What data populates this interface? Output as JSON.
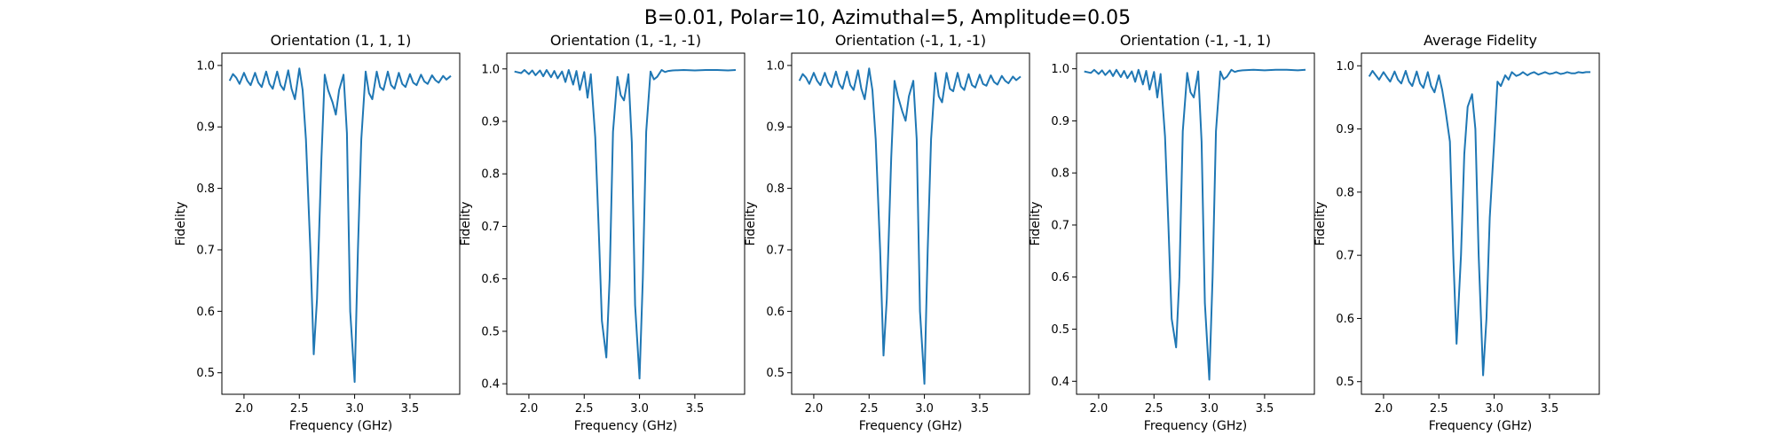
{
  "figure": {
    "suptitle": "B=0.01, Polar=10, Azimuthal=5, Amplitude=0.05"
  },
  "colors": {
    "line": "#1f77b4",
    "frame": "#000000"
  },
  "chart_data": [
    {
      "type": "line",
      "title": "Orientation (1, 1, 1)",
      "xlabel": "Frequency (GHz)",
      "ylabel": "Fidelity",
      "xlim": [
        1.8,
        3.95
      ],
      "ylim": [
        0.465,
        1.02
      ],
      "xticks": [
        "2.0",
        "2.5",
        "3.0",
        "3.5"
      ],
      "yticks": [
        "0.5",
        "0.6",
        "0.7",
        "0.8",
        "0.9",
        "1.0"
      ],
      "grid": false,
      "series": [
        {
          "x": [
            1.87,
            1.9,
            1.93,
            1.96,
            2.0,
            2.03,
            2.06,
            2.1,
            2.13,
            2.16,
            2.2,
            2.23,
            2.26,
            2.3,
            2.33,
            2.36,
            2.4,
            2.43,
            2.46,
            2.5,
            2.53,
            2.56,
            2.6,
            2.63,
            2.66,
            2.7,
            2.73,
            2.76,
            2.8,
            2.83,
            2.86,
            2.9,
            2.93,
            2.96,
            3.0,
            3.03,
            3.06,
            3.1,
            3.13,
            3.16,
            3.2,
            3.23,
            3.26,
            3.3,
            3.33,
            3.36,
            3.4,
            3.43,
            3.46,
            3.5,
            3.53,
            3.56,
            3.6,
            3.63,
            3.66,
            3.7,
            3.73,
            3.76,
            3.8,
            3.83,
            3.87
          ],
          "y": [
            0.975,
            0.986,
            0.98,
            0.97,
            0.988,
            0.975,
            0.968,
            0.988,
            0.972,
            0.965,
            0.99,
            0.97,
            0.962,
            0.99,
            0.968,
            0.96,
            0.992,
            0.962,
            0.945,
            0.995,
            0.96,
            0.88,
            0.7,
            0.53,
            0.62,
            0.85,
            0.985,
            0.96,
            0.94,
            0.92,
            0.96,
            0.985,
            0.89,
            0.6,
            0.485,
            0.7,
            0.88,
            0.99,
            0.955,
            0.945,
            0.99,
            0.965,
            0.96,
            0.99,
            0.968,
            0.962,
            0.988,
            0.97,
            0.965,
            0.986,
            0.972,
            0.968,
            0.985,
            0.974,
            0.97,
            0.984,
            0.976,
            0.972,
            0.983,
            0.977,
            0.983
          ]
        }
      ]
    },
    {
      "type": "line",
      "title": "Orientation (1, -1, -1)",
      "xlabel": "Frequency (GHz)",
      "ylabel": "Fidelity",
      "xlim": [
        1.8,
        3.95
      ],
      "ylim": [
        0.38,
        1.03
      ],
      "xticks": [
        "2.0",
        "2.5",
        "3.0",
        "3.5"
      ],
      "yticks": [
        "0.4",
        "0.5",
        "0.6",
        "0.7",
        "0.8",
        "0.9",
        "1.0"
      ],
      "grid": false,
      "series": [
        {
          "x": [
            1.87,
            1.93,
            1.96,
            2.0,
            2.03,
            2.06,
            2.1,
            2.13,
            2.16,
            2.2,
            2.23,
            2.26,
            2.3,
            2.33,
            2.36,
            2.4,
            2.43,
            2.46,
            2.5,
            2.53,
            2.56,
            2.6,
            2.63,
            2.66,
            2.7,
            2.73,
            2.76,
            2.8,
            2.83,
            2.86,
            2.9,
            2.93,
            2.96,
            3.0,
            3.03,
            3.06,
            3.1,
            3.13,
            3.16,
            3.2,
            3.23,
            3.26,
            3.3,
            3.4,
            3.5,
            3.6,
            3.7,
            3.8,
            3.87
          ],
          "y": [
            0.995,
            0.992,
            0.998,
            0.99,
            0.997,
            0.988,
            0.997,
            0.986,
            0.998,
            0.984,
            0.996,
            0.982,
            0.995,
            0.975,
            0.998,
            0.97,
            0.996,
            0.96,
            0.994,
            0.945,
            0.99,
            0.87,
            0.7,
            0.52,
            0.45,
            0.6,
            0.88,
            0.985,
            0.95,
            0.94,
            0.99,
            0.86,
            0.55,
            0.41,
            0.6,
            0.88,
            0.995,
            0.98,
            0.985,
            0.998,
            0.994,
            0.996,
            0.997,
            0.998,
            0.997,
            0.998,
            0.998,
            0.997,
            0.998
          ]
        }
      ]
    },
    {
      "type": "line",
      "title": "Orientation (-1, 1, -1)",
      "xlabel": "Frequency (GHz)",
      "ylabel": "Fidelity",
      "xlim": [
        1.8,
        3.95
      ],
      "ylim": [
        0.465,
        1.02
      ],
      "xticks": [
        "2.0",
        "2.5",
        "3.0",
        "3.5"
      ],
      "yticks": [
        "0.5",
        "0.6",
        "0.7",
        "0.8",
        "0.9",
        "1.0"
      ],
      "grid": false,
      "series": [
        {
          "x": [
            1.87,
            1.9,
            1.93,
            1.96,
            2.0,
            2.03,
            2.06,
            2.1,
            2.13,
            2.16,
            2.2,
            2.23,
            2.26,
            2.3,
            2.33,
            2.36,
            2.4,
            2.43,
            2.46,
            2.5,
            2.53,
            2.56,
            2.6,
            2.63,
            2.66,
            2.7,
            2.73,
            2.76,
            2.8,
            2.83,
            2.86,
            2.9,
            2.93,
            2.96,
            3.0,
            3.03,
            3.06,
            3.1,
            3.13,
            3.16,
            3.2,
            3.23,
            3.26,
            3.3,
            3.33,
            3.36,
            3.4,
            3.43,
            3.46,
            3.5,
            3.53,
            3.56,
            3.6,
            3.63,
            3.66,
            3.7,
            3.73,
            3.76,
            3.8,
            3.83,
            3.87
          ],
          "y": [
            0.975,
            0.986,
            0.98,
            0.97,
            0.988,
            0.975,
            0.968,
            0.988,
            0.972,
            0.965,
            0.99,
            0.97,
            0.962,
            0.99,
            0.968,
            0.96,
            0.992,
            0.962,
            0.945,
            0.995,
            0.96,
            0.88,
            0.7,
            0.528,
            0.62,
            0.85,
            0.975,
            0.95,
            0.925,
            0.91,
            0.95,
            0.975,
            0.88,
            0.6,
            0.482,
            0.7,
            0.88,
            0.988,
            0.95,
            0.94,
            0.988,
            0.962,
            0.958,
            0.988,
            0.966,
            0.96,
            0.986,
            0.968,
            0.964,
            0.985,
            0.97,
            0.967,
            0.984,
            0.973,
            0.969,
            0.983,
            0.975,
            0.971,
            0.982,
            0.976,
            0.982
          ]
        }
      ]
    },
    {
      "type": "line",
      "title": "Orientation (-1, -1, 1)",
      "xlabel": "Frequency (GHz)",
      "ylabel": "Fidelity",
      "xlim": [
        1.8,
        3.95
      ],
      "ylim": [
        0.375,
        1.03
      ],
      "xticks": [
        "2.0",
        "2.5",
        "3.0",
        "3.5"
      ],
      "yticks": [
        "0.4",
        "0.5",
        "0.6",
        "0.7",
        "0.8",
        "0.9",
        "1.0"
      ],
      "grid": false,
      "series": [
        {
          "x": [
            1.87,
            1.93,
            1.96,
            2.0,
            2.03,
            2.06,
            2.1,
            2.13,
            2.16,
            2.2,
            2.23,
            2.26,
            2.3,
            2.33,
            2.36,
            2.4,
            2.43,
            2.46,
            2.5,
            2.53,
            2.56,
            2.6,
            2.63,
            2.66,
            2.7,
            2.73,
            2.76,
            2.8,
            2.83,
            2.86,
            2.9,
            2.93,
            2.96,
            3.0,
            3.03,
            3.06,
            3.1,
            3.13,
            3.16,
            3.2,
            3.23,
            3.26,
            3.3,
            3.4,
            3.5,
            3.6,
            3.7,
            3.8,
            3.87
          ],
          "y": [
            0.995,
            0.992,
            0.998,
            0.99,
            0.997,
            0.988,
            0.997,
            0.986,
            0.998,
            0.984,
            0.996,
            0.982,
            0.995,
            0.975,
            0.998,
            0.97,
            0.996,
            0.96,
            0.994,
            0.945,
            0.99,
            0.87,
            0.7,
            0.52,
            0.465,
            0.6,
            0.88,
            0.992,
            0.955,
            0.945,
            0.995,
            0.86,
            0.55,
            0.403,
            0.6,
            0.88,
            0.995,
            0.98,
            0.985,
            0.998,
            0.994,
            0.996,
            0.997,
            0.998,
            0.997,
            0.998,
            0.998,
            0.997,
            0.998
          ]
        }
      ]
    },
    {
      "type": "line",
      "title": "Average Fidelity",
      "xlabel": "Frequency (GHz)",
      "ylabel": "Fidelity",
      "xlim": [
        1.8,
        3.95
      ],
      "ylim": [
        0.48,
        1.02
      ],
      "xticks": [
        "2.0",
        "2.5",
        "3.0",
        "3.5"
      ],
      "yticks": [
        "0.5",
        "0.6",
        "0.7",
        "0.8",
        "0.9",
        "1.0"
      ],
      "grid": false,
      "series": [
        {
          "x": [
            1.87,
            1.9,
            1.93,
            1.96,
            2.0,
            2.03,
            2.06,
            2.1,
            2.13,
            2.16,
            2.2,
            2.23,
            2.26,
            2.3,
            2.33,
            2.36,
            2.4,
            2.43,
            2.46,
            2.5,
            2.53,
            2.56,
            2.6,
            2.63,
            2.66,
            2.7,
            2.73,
            2.76,
            2.8,
            2.83,
            2.86,
            2.9,
            2.93,
            2.96,
            3.0,
            3.03,
            3.06,
            3.1,
            3.13,
            3.16,
            3.2,
            3.23,
            3.26,
            3.3,
            3.33,
            3.36,
            3.4,
            3.43,
            3.46,
            3.5,
            3.53,
            3.56,
            3.6,
            3.63,
            3.66,
            3.7,
            3.73,
            3.76,
            3.8,
            3.83,
            3.87
          ],
          "y": [
            0.983,
            0.992,
            0.985,
            0.978,
            0.99,
            0.982,
            0.975,
            0.991,
            0.978,
            0.972,
            0.992,
            0.975,
            0.968,
            0.991,
            0.972,
            0.965,
            0.99,
            0.968,
            0.958,
            0.985,
            0.962,
            0.93,
            0.88,
            0.7,
            0.56,
            0.7,
            0.86,
            0.935,
            0.955,
            0.9,
            0.7,
            0.51,
            0.6,
            0.76,
            0.88,
            0.975,
            0.968,
            0.985,
            0.978,
            0.99,
            0.984,
            0.986,
            0.99,
            0.985,
            0.988,
            0.99,
            0.986,
            0.988,
            0.99,
            0.987,
            0.988,
            0.99,
            0.987,
            0.988,
            0.99,
            0.988,
            0.988,
            0.99,
            0.989,
            0.99,
            0.99
          ]
        }
      ]
    }
  ]
}
